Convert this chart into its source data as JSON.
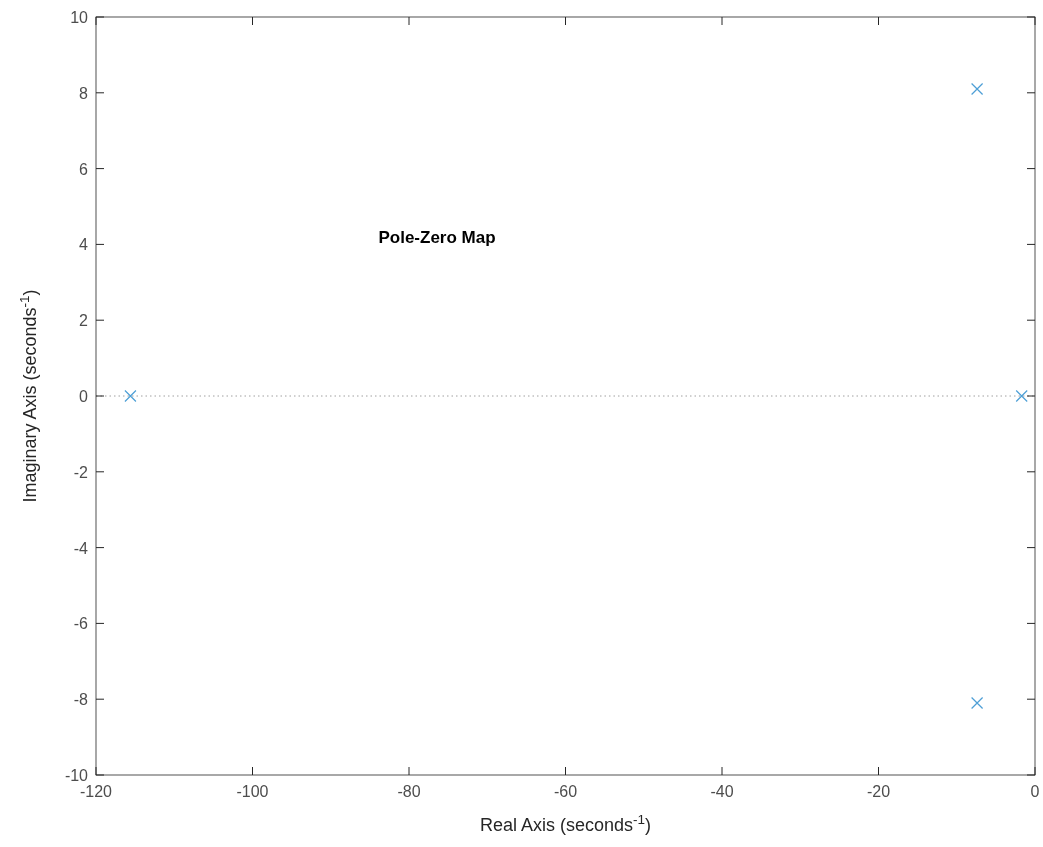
{
  "chart_data": {
    "type": "scatter",
    "title": "Pole-Zero Map",
    "xlabel": "Real Axis (seconds$^{-1}$)",
    "ylabel": "Imaginary Axis (seconds$^{-1}$)",
    "x": [
      -115.6,
      -7.4,
      -7.4,
      -1.7
    ],
    "series": [
      {
        "color": "#4d9fd6",
        "values": [
          0,
          8.1,
          -8.1,
          0
        ]
      }
    ],
    "marker": "cross",
    "grid": false,
    "xlim": [
      -120,
      0
    ],
    "xticks": [
      -120,
      -100,
      -80,
      -60,
      -40,
      -20,
      0
    ],
    "ylim": [
      -10,
      10
    ],
    "yticks": [
      -10,
      -8,
      -6,
      -4,
      -2,
      0,
      2,
      4,
      6,
      8,
      10
    ],
    "ref_lines": [
      {
        "axis": "y",
        "value": 0,
        "color": "#a0a0a0",
        "line_style": "dotted"
      }
    ]
  }
}
